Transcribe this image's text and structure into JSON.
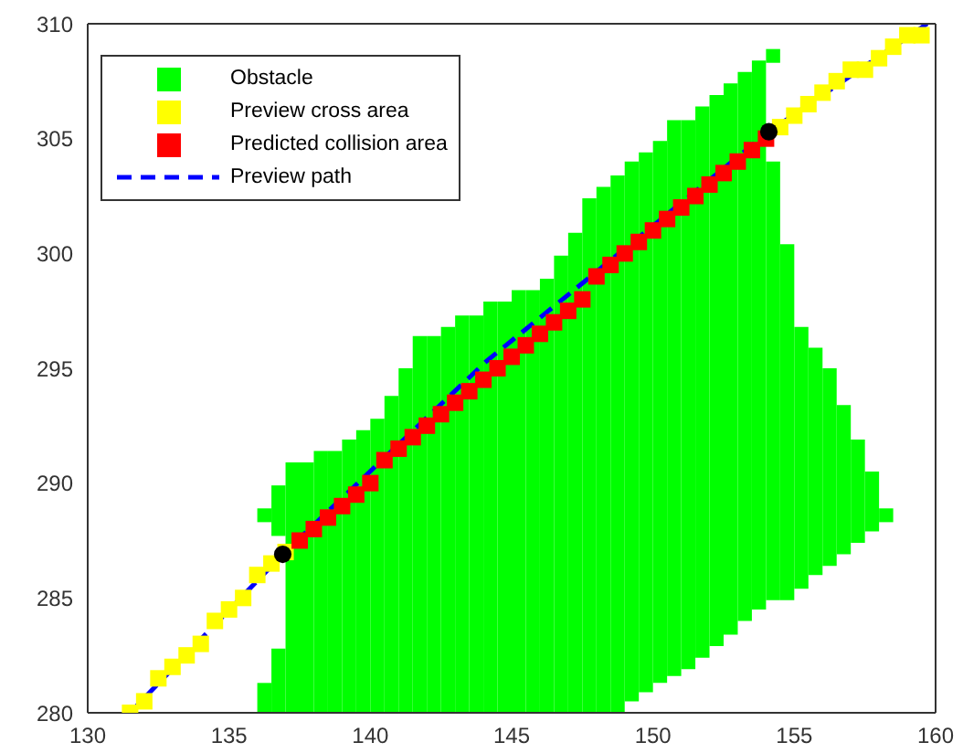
{
  "chart_data": {
    "type": "bar",
    "xlim": [
      130,
      160
    ],
    "ylim": [
      280,
      310
    ],
    "xticks": [
      130,
      135,
      140,
      145,
      150,
      155,
      160
    ],
    "yticks": [
      280,
      285,
      290,
      295,
      300,
      305,
      310
    ],
    "legend": "top left",
    "series": [
      {
        "name": "Obstacle",
        "color": "#00ff00",
        "x": [
          136.25,
          136.75,
          137.25,
          137.75,
          138.25,
          138.75,
          139.25,
          139.75,
          140.25,
          140.75,
          141.25,
          141.75,
          142.25,
          142.75,
          143.25,
          143.75,
          144.25,
          144.75,
          145.25,
          145.75,
          146.25,
          146.75,
          147.25,
          147.75,
          148.25,
          148.75,
          149.25,
          149.75,
          150.25,
          150.75,
          151.25,
          151.75,
          152.25,
          152.75,
          153.25,
          153.75,
          154.25,
          154.75,
          155.25,
          155.75,
          156.25,
          156.75,
          157.25,
          157.75,
          158.25
        ],
        "base": [
          288.3,
          287.7,
          280,
          280,
          280,
          280,
          280,
          280,
          280,
          280,
          280,
          280,
          280,
          280,
          280,
          280,
          280,
          280,
          280,
          280,
          280,
          280,
          280,
          280,
          280,
          280,
          280.5,
          280.9,
          281.3,
          281.6,
          281.9,
          282.4,
          282.9,
          283.4,
          284,
          284.5,
          284.9,
          284.9,
          285.4,
          286,
          286.4,
          286.9,
          287.4,
          287.9,
          288.3
        ],
        "values": [
          0.6,
          2.2,
          10.9,
          10.9,
          11.4,
          11.4,
          11.9,
          12.3,
          12.8,
          13.8,
          15,
          16.4,
          16.4,
          16.8,
          17.3,
          17.3,
          17.9,
          17.9,
          18.4,
          18.4,
          18.9,
          19.9,
          20.9,
          22.4,
          22.9,
          23.4,
          23.5,
          23.5,
          23.6,
          24.2,
          23.9,
          24,
          24,
          24,
          23.9,
          23.9,
          19.1,
          15.5,
          11.4,
          9.9,
          8.6,
          6.5,
          4.5,
          2.6,
          0.6
        ]
      },
      {
        "color": "#00ff00",
        "x": [
          136.25,
          136.75,
          154.25
        ],
        "base": [
          280,
          280,
          308.3
        ],
        "values": [
          1.3,
          2.8,
          0.6
        ]
      },
      {
        "name": "Preview cross area",
        "type": "scatter",
        "marker": "square",
        "color": "#ffff00",
        "x": [
          131.5,
          132,
          132.5,
          133,
          133.5,
          134,
          134.5,
          135,
          135.5,
          136,
          136.5,
          137,
          154.5,
          155,
          155.5,
          156,
          156.5,
          157,
          157.5,
          158,
          158.5,
          159,
          159.5
        ],
        "values": [
          280,
          280.5,
          281.5,
          282,
          282.5,
          283,
          284,
          284.5,
          285,
          286,
          286.5,
          287,
          305.5,
          306,
          306.5,
          307,
          307.5,
          308,
          308,
          308.5,
          309,
          309.5,
          309.5
        ]
      },
      {
        "name": "Predicted collision area",
        "type": "scatter",
        "marker": "square",
        "color": "#ff0000",
        "x": [
          137.5,
          138,
          138.5,
          139,
          139.5,
          140,
          140.5,
          141,
          141.5,
          142,
          142.5,
          143,
          143.5,
          144,
          144.5,
          145,
          145.5,
          146,
          146.5,
          147,
          147.5,
          148,
          148.5,
          149,
          149.5,
          150,
          150.5,
          151,
          151.5,
          152,
          152.5,
          153,
          153.5,
          154
        ],
        "values": [
          287.5,
          288,
          288.5,
          289,
          289.5,
          290,
          291,
          291.5,
          292,
          292.5,
          293,
          293.5,
          294,
          294.5,
          295,
          295.5,
          296,
          296.5,
          297,
          297.5,
          298,
          299,
          299.5,
          300,
          300.5,
          301,
          301.5,
          302,
          302.5,
          303,
          303.5,
          304,
          304.5,
          305
        ]
      },
      {
        "name": "Preview path",
        "type": "line",
        "line_style": "dashed",
        "marker": "none",
        "color": "#0000ff",
        "x": [
          131.5,
          136.9,
          144.1,
          154.1,
          159.7
        ],
        "values": [
          280,
          286.9,
          295.3,
          305.3,
          310
        ]
      },
      {
        "type": "scatter",
        "marker": "circle",
        "color": "#000000",
        "x": [
          136.9,
          154.1
        ],
        "values": [
          286.9,
          305.3
        ]
      }
    ]
  }
}
